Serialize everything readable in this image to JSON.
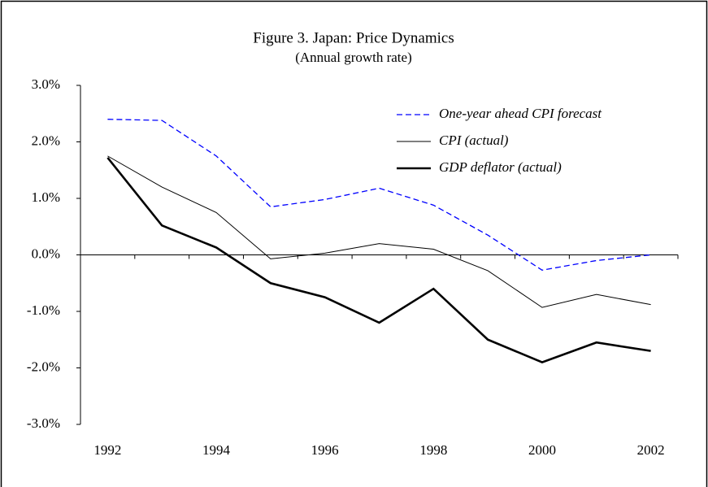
{
  "chart_data": {
    "type": "line",
    "title": "Figure 3. Japan: Price Dynamics",
    "subtitle": "(Annual growth rate)",
    "categories": [
      "1992",
      null,
      "1994",
      null,
      "1996",
      null,
      "1998",
      null,
      "2000",
      null,
      "2002"
    ],
    "series": [
      {
        "name": "One-year ahead CPI forecast",
        "color": "#0000ff",
        "dash": true,
        "width": 1.3,
        "values": [
          2.4,
          2.38,
          1.75,
          0.85,
          0.98,
          1.18,
          0.88,
          0.35,
          -0.27,
          -0.1,
          0.0
        ]
      },
      {
        "name": "CPI (actual)",
        "color": "#000000",
        "dash": false,
        "width": 1,
        "values": [
          1.75,
          1.2,
          0.75,
          -0.07,
          0.03,
          0.2,
          0.1,
          -0.28,
          -0.93,
          -0.7,
          -0.88
        ]
      },
      {
        "name": "GDP deflator (actual)",
        "color": "#000000",
        "dash": false,
        "width": 2.6,
        "values": [
          1.72,
          0.52,
          0.13,
          -0.5,
          -0.75,
          -1.2,
          -0.6,
          -1.5,
          -1.9,
          -1.55,
          -1.7
        ]
      }
    ],
    "ylim": [
      -3,
      3
    ],
    "yticks": [
      {
        "value": -3,
        "label": "-3.0%"
      },
      {
        "value": -2,
        "label": "-2.0%"
      },
      {
        "value": -1,
        "label": "-1.0%"
      },
      {
        "value": 0,
        "label": "0.0%"
      },
      {
        "value": 1,
        "label": "1.0%"
      },
      {
        "value": 2,
        "label": "2.0%"
      },
      {
        "value": 3,
        "label": "3.0%"
      }
    ],
    "grid": false
  }
}
